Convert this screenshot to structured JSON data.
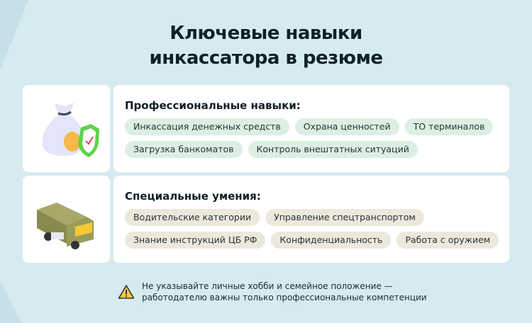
{
  "title": [
    "Ключевые навыки",
    "инкассатора в резюме"
  ],
  "sections": [
    {
      "icon": "money-bag-shield-icon",
      "heading": "Профессиональные навыки:",
      "tags": [
        "Инкассация денежных средств",
        "Охрана ценностей",
        "ТО терминалов",
        "Загрузка банкоматов",
        "Контроль внештатных ситуаций"
      ]
    },
    {
      "icon": "armored-truck-icon",
      "heading": "Специальные умения:",
      "tags": [
        "Водительские категории",
        "Управление спецтранспортом",
        "Знание инструкций ЦБ РФ",
        "Конфиденциальность",
        "Работа с оружием"
      ]
    }
  ],
  "note": {
    "icon": "warning-icon",
    "lines": [
      "Не указывайте личные хобби и семейное положение —",
      "работодателю важны только профессиональные компетенции"
    ]
  },
  "colors": {
    "background": "#d6ebf0",
    "tag_green": "#dcefe3",
    "tag_beige": "#ece8dc"
  }
}
